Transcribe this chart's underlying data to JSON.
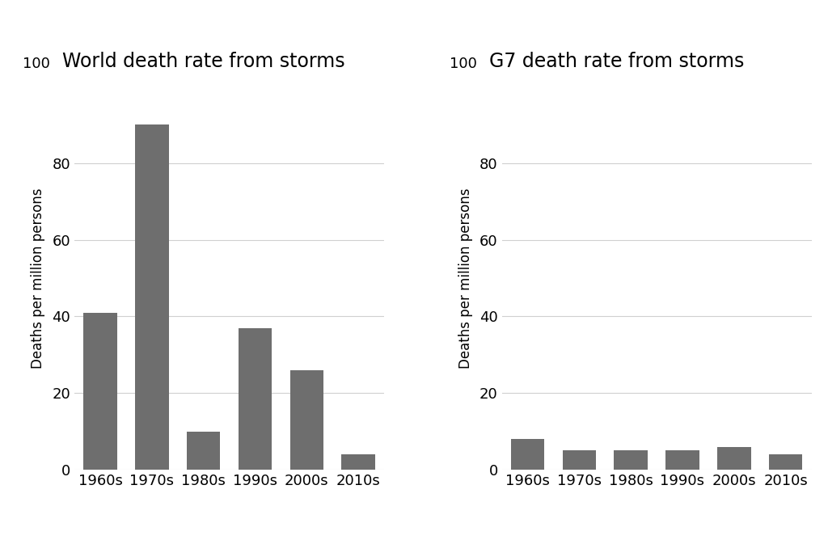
{
  "world_categories": [
    "1960s",
    "1970s",
    "1980s",
    "1990s",
    "2000s",
    "2010s"
  ],
  "world_values": [
    41,
    90,
    10,
    37,
    26,
    4
  ],
  "g7_categories": [
    "1960s",
    "1970s",
    "1980s",
    "1990s",
    "2000s",
    "2010s"
  ],
  "g7_values": [
    8,
    5,
    5,
    5,
    6,
    4
  ],
  "world_title": "World death rate from storms",
  "g7_title": "G7 death rate from storms",
  "ylabel": "Deaths per million persons",
  "ylim": [
    0,
    100
  ],
  "yticks": [
    0,
    20,
    40,
    60,
    80
  ],
  "bar_color": "#6e6e6e",
  "background_color": "#ffffff",
  "title_fontsize": 17,
  "tick_fontsize": 13,
  "ylabel_fontsize": 12,
  "grid_color": "#d0d0d0",
  "top_label_100": "100"
}
